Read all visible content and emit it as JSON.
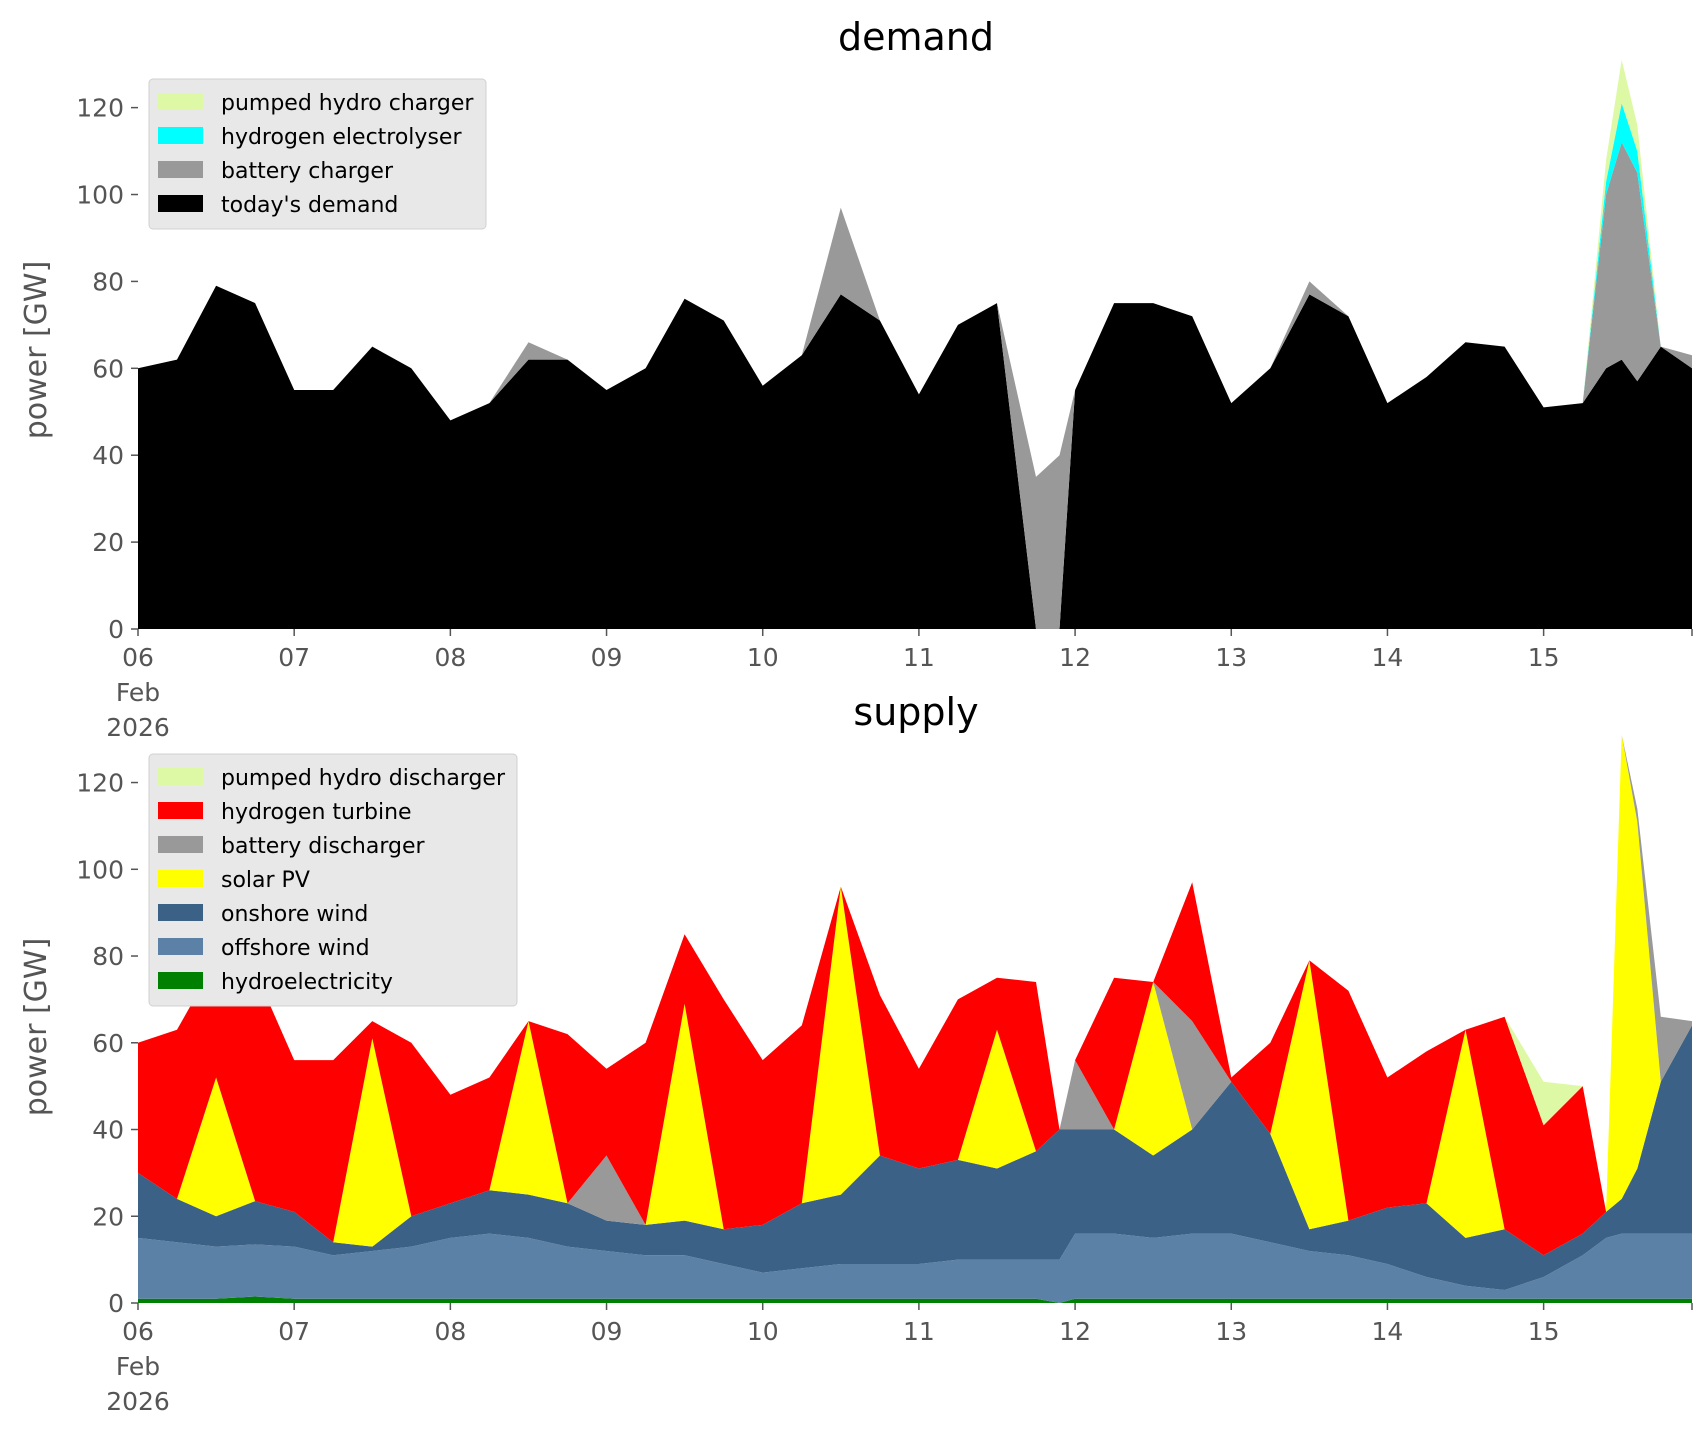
{
  "chart_data": [
    {
      "type": "area",
      "title": "demand",
      "xlabel": "",
      "ylabel": "power [GW]",
      "ylim": [
        0,
        130
      ],
      "yticks": [
        "0",
        "20",
        "40",
        "60",
        "80",
        "100",
        "120"
      ],
      "xticks": [
        "06",
        "07",
        "08",
        "09",
        "10",
        "11",
        "12",
        "13",
        "14",
        "15"
      ],
      "xtick_sub": [
        "Feb",
        "2026"
      ],
      "xlim_days": [
        6,
        15.95
      ],
      "stacked": true,
      "grid": false,
      "legend_position": "upper-left",
      "x_days": [
        6.0,
        6.25,
        6.5,
        6.75,
        7.0,
        7.25,
        7.5,
        7.75,
        8.0,
        8.25,
        8.5,
        8.75,
        9.0,
        9.25,
        9.5,
        9.75,
        10.0,
        10.25,
        10.5,
        10.75,
        11.0,
        11.25,
        11.5,
        11.75,
        11.9,
        12.0,
        12.25,
        12.5,
        12.75,
        13.0,
        13.25,
        13.5,
        13.75,
        14.0,
        14.25,
        14.5,
        14.75,
        15.0,
        15.25,
        15.4,
        15.5,
        15.6,
        15.75,
        15.95
      ],
      "series": [
        {
          "name": "today's demand",
          "color": "#000000",
          "values": [
            60,
            62,
            79,
            75,
            55,
            55,
            65,
            60,
            48,
            52,
            62,
            62,
            55,
            60,
            76,
            71,
            56,
            63,
            77,
            71,
            54,
            70,
            75,
            0,
            0,
            55,
            75,
            75,
            72,
            52,
            60,
            77,
            72,
            52,
            58,
            66,
            65,
            51,
            52,
            60,
            62,
            57,
            65,
            60
          ]
        },
        {
          "name": "battery charger",
          "color": "#999999",
          "values": [
            0,
            0,
            0,
            0,
            0,
            0,
            0,
            0,
            0,
            0,
            4,
            0,
            0,
            0,
            0,
            0,
            0,
            0,
            20,
            0,
            0,
            0,
            0,
            35,
            40,
            0,
            0,
            0,
            0,
            0,
            0,
            3,
            0,
            0,
            0,
            0,
            0,
            0,
            0,
            40,
            50,
            48,
            0,
            3
          ]
        },
        {
          "name": "hydrogen electrolyser",
          "color": "#00ffff",
          "values": [
            0,
            0,
            0,
            0,
            0,
            0,
            0,
            0,
            0,
            0,
            0,
            0,
            0,
            0,
            0,
            0,
            0,
            0,
            0,
            0,
            0,
            0,
            0,
            0,
            0,
            0,
            0,
            0,
            0,
            0,
            0,
            0,
            0,
            0,
            0,
            0,
            0,
            0,
            0,
            3,
            9,
            5,
            0,
            0
          ]
        },
        {
          "name": "pumped hydro charger",
          "color": "#ddf9a6",
          "values": [
            0,
            0,
            0,
            0,
            0,
            0,
            0,
            0,
            0,
            0,
            0,
            0,
            0,
            0,
            0,
            0,
            0,
            0,
            0,
            0,
            0,
            0,
            0,
            0,
            0,
            0,
            0,
            0,
            0,
            0,
            0,
            0,
            0,
            0,
            0,
            0,
            0,
            0,
            0,
            5,
            10,
            6,
            0,
            0
          ]
        }
      ]
    },
    {
      "type": "area",
      "title": "supply",
      "xlabel": "",
      "ylabel": "power [GW]",
      "ylim": [
        0,
        130
      ],
      "yticks": [
        "0",
        "20",
        "40",
        "60",
        "80",
        "100",
        "120"
      ],
      "xticks": [
        "06",
        "07",
        "08",
        "09",
        "10",
        "11",
        "12",
        "13",
        "14",
        "15"
      ],
      "xtick_sub": [
        "Feb",
        "2026"
      ],
      "xlim_days": [
        6,
        15.95
      ],
      "stacked": true,
      "grid": false,
      "legend_position": "upper-left",
      "x_days": [
        6.0,
        6.25,
        6.5,
        6.75,
        7.0,
        7.25,
        7.5,
        7.75,
        8.0,
        8.25,
        8.5,
        8.75,
        9.0,
        9.25,
        9.5,
        9.75,
        10.0,
        10.25,
        10.5,
        10.75,
        11.0,
        11.25,
        11.5,
        11.75,
        11.9,
        12.0,
        12.25,
        12.5,
        12.75,
        13.0,
        13.25,
        13.5,
        13.75,
        14.0,
        14.25,
        14.5,
        14.75,
        15.0,
        15.25,
        15.4,
        15.5,
        15.6,
        15.75,
        15.95
      ],
      "series": [
        {
          "name": "hydroelectricity",
          "color": "#008000",
          "values": [
            1,
            1,
            1,
            1.5,
            1,
            1,
            1,
            1,
            1,
            1,
            1,
            1,
            1,
            1,
            1,
            1,
            1,
            1,
            1,
            1,
            1,
            1,
            1,
            1,
            0,
            1,
            1,
            1,
            1,
            1,
            1,
            1,
            1,
            1,
            1,
            1,
            1,
            1,
            1,
            1,
            1,
            1,
            1,
            1
          ]
        },
        {
          "name": "offshore wind",
          "color": "#5b82a6",
          "values": [
            14,
            13,
            12,
            12,
            12,
            10,
            11,
            12,
            14,
            15,
            14,
            12,
            11,
            10,
            10,
            8,
            6,
            7,
            8,
            8,
            8,
            9,
            9,
            9,
            10,
            15,
            15,
            14,
            15,
            15,
            13,
            11,
            10,
            8,
            5,
            3,
            2,
            5,
            10,
            14,
            15,
            15,
            15,
            15
          ]
        },
        {
          "name": "onshore wind",
          "color": "#3c6186",
          "values": [
            15,
            10,
            7,
            10,
            8,
            3,
            1,
            7,
            8,
            10,
            10,
            10,
            7,
            7,
            8,
            8,
            11,
            15,
            16,
            25,
            22,
            23,
            21,
            25,
            30,
            24,
            24,
            19,
            24,
            35,
            25,
            5,
            8,
            13,
            17,
            11,
            14,
            5,
            5,
            6,
            8,
            15,
            35,
            48
          ]
        },
        {
          "name": "solar PV",
          "color": "#ffff00",
          "values": [
            0,
            0,
            32,
            0,
            0,
            0,
            48,
            0,
            0,
            0,
            40,
            0,
            0,
            0,
            50,
            0,
            0,
            0,
            71,
            0,
            0,
            0,
            32,
            0,
            0,
            0,
            0,
            40,
            0,
            0,
            0,
            62,
            0,
            0,
            0,
            48,
            0,
            0,
            0,
            0,
            107,
            80,
            0,
            0
          ]
        },
        {
          "name": "battery discharger",
          "color": "#999999",
          "values": [
            0,
            0,
            0,
            0,
            0,
            0,
            0,
            0,
            0,
            0,
            0,
            0,
            15,
            0,
            0,
            0,
            0,
            0,
            0,
            0,
            0,
            0,
            0,
            0,
            0,
            16,
            0,
            0,
            25,
            0,
            0,
            0,
            0,
            0,
            0,
            0,
            0,
            0,
            0,
            0,
            0,
            3,
            15,
            1
          ]
        },
        {
          "name": "hydrogen turbine",
          "color": "#ff0000",
          "values": [
            30,
            39,
            27,
            53,
            35,
            42,
            4,
            40,
            25,
            26,
            0,
            39,
            20,
            42,
            16,
            53,
            38,
            41,
            0,
            37,
            23,
            37,
            12,
            39,
            0,
            0,
            35,
            0,
            32,
            1,
            21,
            0,
            53,
            30,
            35,
            0,
            49,
            30,
            34,
            0,
            0,
            0,
            0,
            0
          ]
        },
        {
          "name": "pumped hydro discharger",
          "color": "#ddf9a6",
          "values": [
            0,
            0,
            0,
            0,
            0,
            0,
            0,
            0,
            0,
            0,
            0,
            0,
            0,
            0,
            0,
            0,
            0,
            0,
            0,
            0,
            0,
            0,
            0,
            0,
            0,
            0,
            0,
            0,
            0,
            0,
            0,
            0,
            0,
            0,
            0,
            0,
            0,
            10,
            0,
            0,
            0,
            0,
            0,
            0
          ]
        }
      ]
    }
  ]
}
